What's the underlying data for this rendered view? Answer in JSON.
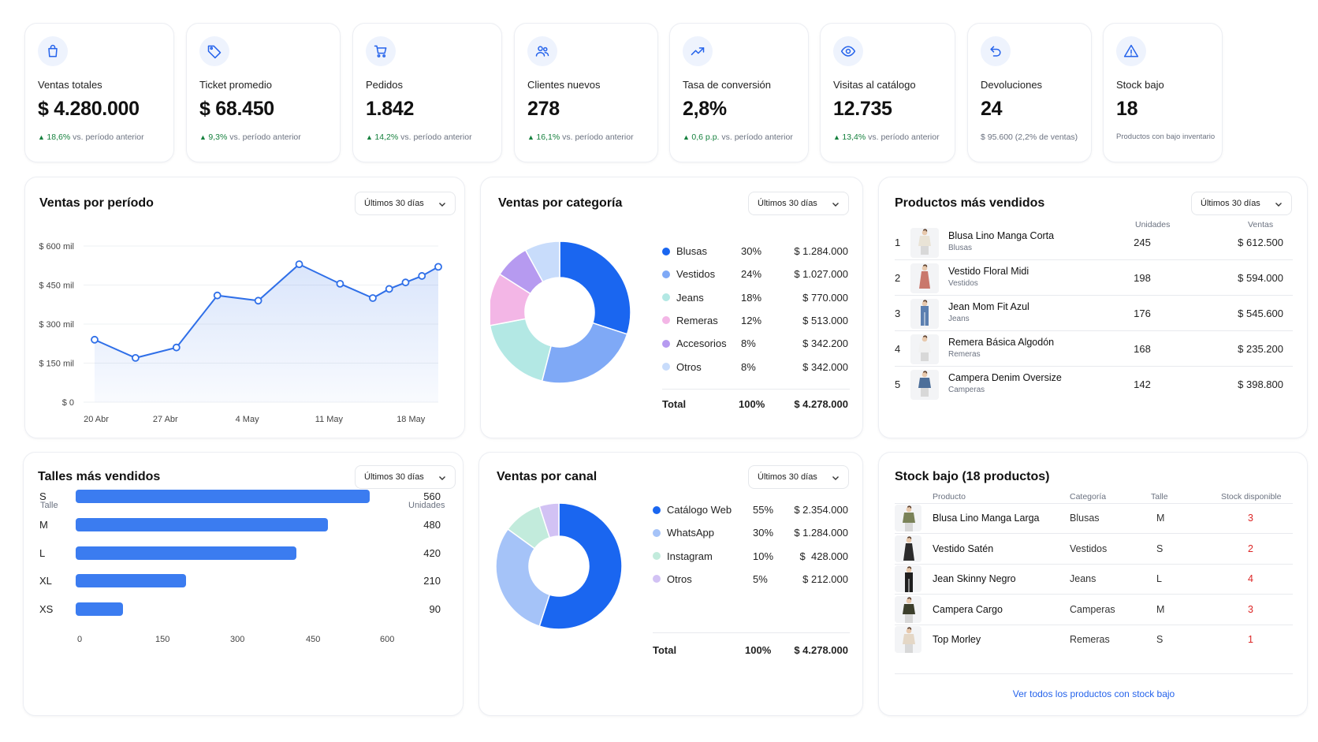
{
  "kpis": [
    {
      "icon": "shopping-bag-icon",
      "label": "Ventas totales",
      "value": "$ 4.280.000",
      "delta": "18,6%",
      "delta_text": "vs. período anterior"
    },
    {
      "icon": "tag-icon",
      "label": "Ticket promedio",
      "value": "$ 68.450",
      "delta": "9,3%",
      "delta_text": "vs. período anterior"
    },
    {
      "icon": "cart-icon",
      "label": "Pedidos",
      "value": "1.842",
      "delta": "14,2%",
      "delta_text": "vs. período anterior"
    },
    {
      "icon": "users-icon",
      "label": "Clientes nuevos",
      "value": "278",
      "delta": "16,1%",
      "delta_text": "vs. período anterior"
    },
    {
      "icon": "trending-up-icon",
      "label": "Tasa de conversión",
      "value": "2,8%",
      "delta": "0,6 p.p.",
      "delta_text": "vs. período anterior"
    },
    {
      "icon": "eye-icon",
      "label": "Visitas al catálogo",
      "value": "12.735",
      "delta": "13,4%",
      "delta_text": "vs. período anterior"
    },
    {
      "icon": "undo-icon",
      "label": "Devoluciones",
      "value": "24",
      "note": "$ 95.600 (2,2% de ventas)"
    },
    {
      "icon": "alert-triangle-icon",
      "label": "Stock bajo",
      "value": "18",
      "note": "Productos con bajo inventario"
    }
  ],
  "period_label": "Últimos 30 días",
  "sales_period": {
    "title": "Ventas por período",
    "chart_data": {
      "type": "line",
      "y_ticks": [
        "$ 600 mil",
        "$ 450 mil",
        "$ 300 mil",
        "$ 150 mil",
        "$ 0"
      ],
      "x_ticks": [
        "20 Abr",
        "27 Abr",
        "4 May",
        "11 May",
        "18 May"
      ],
      "ylim": [
        0,
        600
      ],
      "points": [
        {
          "x": 0.0,
          "y": 240
        },
        {
          "x": 0.5,
          "y": 170
        },
        {
          "x": 1.0,
          "y": 210
        },
        {
          "x": 1.5,
          "y": 410
        },
        {
          "x": 2.0,
          "y": 390
        },
        {
          "x": 2.5,
          "y": 530
        },
        {
          "x": 3.0,
          "y": 455
        },
        {
          "x": 3.4,
          "y": 400
        },
        {
          "x": 3.6,
          "y": 435
        },
        {
          "x": 3.8,
          "y": 460
        },
        {
          "x": 4.0,
          "y": 485
        },
        {
          "x": 4.2,
          "y": 520
        }
      ]
    }
  },
  "sales_category": {
    "title": "Ventas por categoría",
    "chart_data": {
      "type": "pie",
      "items": [
        {
          "name": "Blusas",
          "pct": "30%",
          "amount": "$ 1.284.000",
          "value": 30,
          "color": "#1a66f0"
        },
        {
          "name": "Vestidos",
          "pct": "24%",
          "amount": "$ 1.027.000",
          "value": 24,
          "color": "#7fa9f6"
        },
        {
          "name": "Jeans",
          "pct": "18%",
          "amount": "$ 770.000",
          "value": 18,
          "color": "#b3e8e4"
        },
        {
          "name": "Remeras",
          "pct": "12%",
          "amount": "$ 513.000",
          "value": 12,
          "color": "#f3b6e6"
        },
        {
          "name": "Accesorios",
          "pct": "8%",
          "amount": "$ 342.200",
          "value": 8,
          "color": "#b69af0"
        },
        {
          "name": "Otros",
          "pct": "8%",
          "amount": "$ 342.000",
          "value": 8,
          "color": "#c8dcfb"
        }
      ],
      "total_label": "Total",
      "total_pct": "100%",
      "total_amount": "$ 4.278.000"
    }
  },
  "top_products": {
    "title": "Productos más vendidos",
    "col_units": "Unidades",
    "col_sales": "Ventas",
    "rows": [
      {
        "rank": "1",
        "name": "Blusa Lino Manga Corta",
        "category": "Blusas",
        "units": "245",
        "sales": "$ 612.500"
      },
      {
        "rank": "2",
        "name": "Vestido Floral Midi",
        "category": "Vestidos",
        "units": "198",
        "sales": "$ 594.000"
      },
      {
        "rank": "3",
        "name": "Jean Mom Fit Azul",
        "category": "Jeans",
        "units": "176",
        "sales": "$ 545.600"
      },
      {
        "rank": "4",
        "name": "Remera Básica Algodón",
        "category": "Remeras",
        "units": "168",
        "sales": "$ 235.200"
      },
      {
        "rank": "5",
        "name": "Campera Denim Oversize",
        "category": "Camperas",
        "units": "142",
        "sales": "$ 398.800"
      }
    ]
  },
  "sizes": {
    "title": "Talles más vendidos",
    "col_size": "Talle",
    "col_units": "Unidades",
    "chart_data": {
      "type": "bar",
      "categories": [
        "S",
        "M",
        "L",
        "XL",
        "XS"
      ],
      "values": [
        560,
        480,
        420,
        210,
        90
      ],
      "x_ticks": [
        "0",
        "150",
        "300",
        "450",
        "600"
      ],
      "xlim": [
        0,
        600
      ]
    }
  },
  "sales_channel": {
    "title": "Ventas por canal",
    "chart_data": {
      "type": "pie",
      "items": [
        {
          "name": "Catálogo Web",
          "pct": "55%",
          "amount": "$ 2.354.000",
          "value": 55,
          "color": "#1a66f0"
        },
        {
          "name": "WhatsApp",
          "pct": "30%",
          "amount": "$ 1.284.000",
          "value": 30,
          "color": "#a5c3f8"
        },
        {
          "name": "Instagram",
          "pct": "10%",
          "amount": "$  428.000",
          "value": 10,
          "color": "#c2ebdc"
        },
        {
          "name": "Otros",
          "pct": "5%",
          "amount": "$ 212.000",
          "value": 5,
          "color": "#d2c2f4"
        }
      ],
      "total_label": "Total",
      "total_pct": "100%",
      "total_amount": "$ 4.278.000"
    }
  },
  "low_stock": {
    "title": "Stock bajo (18 productos)",
    "cols": {
      "product": "Producto",
      "category": "Categoría",
      "size": "Talle",
      "stock": "Stock disponible"
    },
    "rows": [
      {
        "name": "Blusa Lino Manga Larga",
        "category": "Blusas",
        "size": "M",
        "stock": "3"
      },
      {
        "name": "Vestido Satén",
        "category": "Vestidos",
        "size": "S",
        "stock": "2"
      },
      {
        "name": "Jean Skinny Negro",
        "category": "Jeans",
        "size": "L",
        "stock": "4"
      },
      {
        "name": "Campera Cargo",
        "category": "Camperas",
        "size": "M",
        "stock": "3"
      },
      {
        "name": "Top Morley",
        "category": "Remeras",
        "size": "S",
        "stock": "1"
      }
    ],
    "link": "Ver todos los productos con stock bajo"
  }
}
